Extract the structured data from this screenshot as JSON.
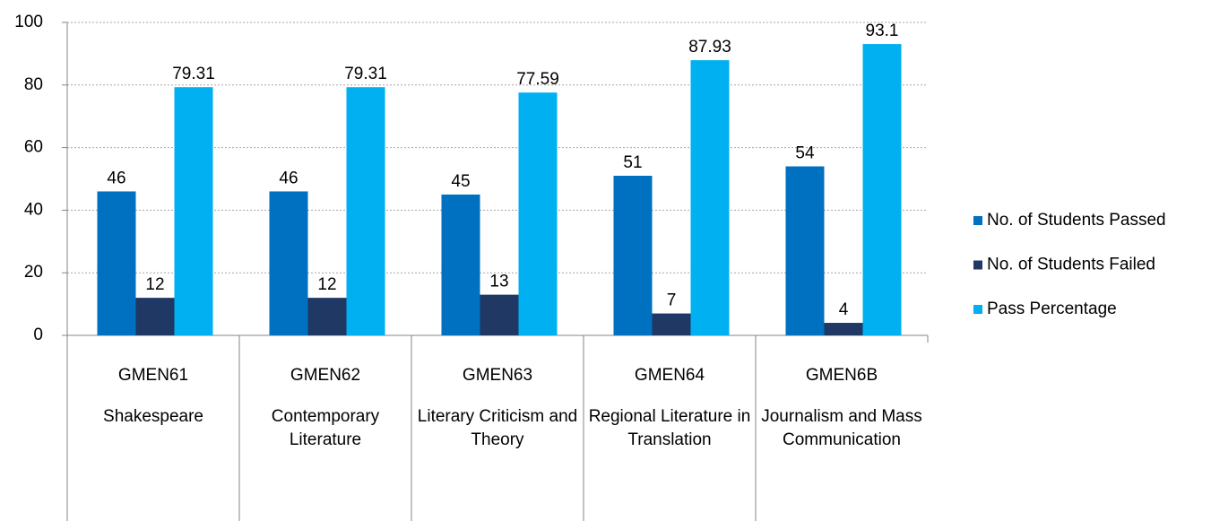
{
  "chart_data": {
    "type": "bar",
    "categories": [
      "GMEN61",
      "GMEN62",
      "GMEN63",
      "GMEN64",
      "GMEN6B"
    ],
    "category_names": [
      "Shakespeare",
      "Contemporary Literature",
      "Literary Criticism and Theory",
      "Regional Literature in Translation",
      "Journalism and Mass Communication"
    ],
    "series": [
      {
        "name": "No. of Students Passed",
        "color": "#0070c0",
        "values": [
          46,
          46,
          45,
          51,
          54
        ]
      },
      {
        "name": "No. of Students Failed",
        "color": "#1f3864",
        "values": [
          12,
          12,
          13,
          7,
          4
        ]
      },
      {
        "name": "Pass Percentage",
        "color": "#00b0f0",
        "values": [
          79.31,
          79.31,
          77.59,
          87.93,
          93.1
        ]
      }
    ],
    "ylim": [
      0,
      100
    ],
    "yticks": [
      0,
      20,
      40,
      60,
      80,
      100
    ],
    "grid": true,
    "legend": "right"
  }
}
